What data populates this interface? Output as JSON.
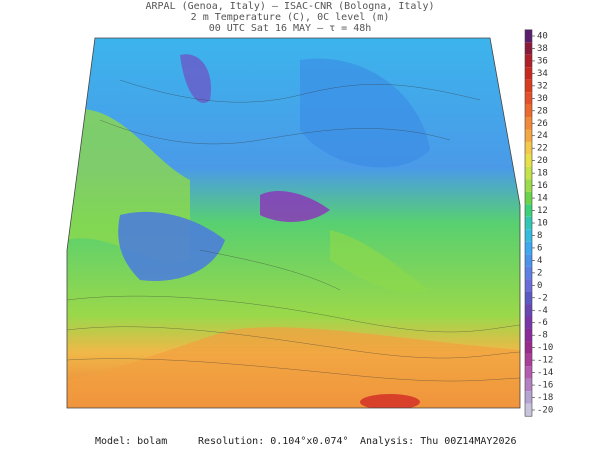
{
  "header": {
    "line1": "ARPAL (Genoa, Italy)  –  ISAC-CNR (Bologna, Italy)",
    "line2": "2 m Temperature (C), 0C level (m)",
    "line3": "00 UTC Sat 16 MAY  –  τ = 48h"
  },
  "colorbar": {
    "ticks": [
      40,
      38,
      36,
      34,
      32,
      30,
      28,
      26,
      24,
      22,
      20,
      18,
      16,
      14,
      12,
      10,
      8,
      6,
      4,
      2,
      0,
      -2,
      -4,
      -6,
      -8,
      -10,
      -12,
      -14,
      -16,
      -18,
      -20
    ],
    "colors": [
      "#5a1e6e",
      "#8b1a3a",
      "#b01e2a",
      "#c8281e",
      "#d83c1e",
      "#e4502a",
      "#ec6a2e",
      "#f08a3a",
      "#f4a844",
      "#f4c84a",
      "#e8e04a",
      "#c4e24a",
      "#9cdc4a",
      "#6cd44a",
      "#3cd07a",
      "#30c8b4",
      "#34bce0",
      "#3ca8f0",
      "#4a94ec",
      "#5c80e4",
      "#6a6cd8",
      "#5c58c4",
      "#6a46b4",
      "#7a36a8",
      "#8a2a9c",
      "#9a2a8c",
      "#a83e98",
      "#b45cb0",
      "#b480c4",
      "#b4a4d0",
      "#c8c4dc"
    ]
  },
  "footer": {
    "model": "Model: bolam",
    "resolution": "Resolution: 0.104°x0.074°",
    "analysis": "Analysis: Thu 00Z14MAY2026"
  }
}
